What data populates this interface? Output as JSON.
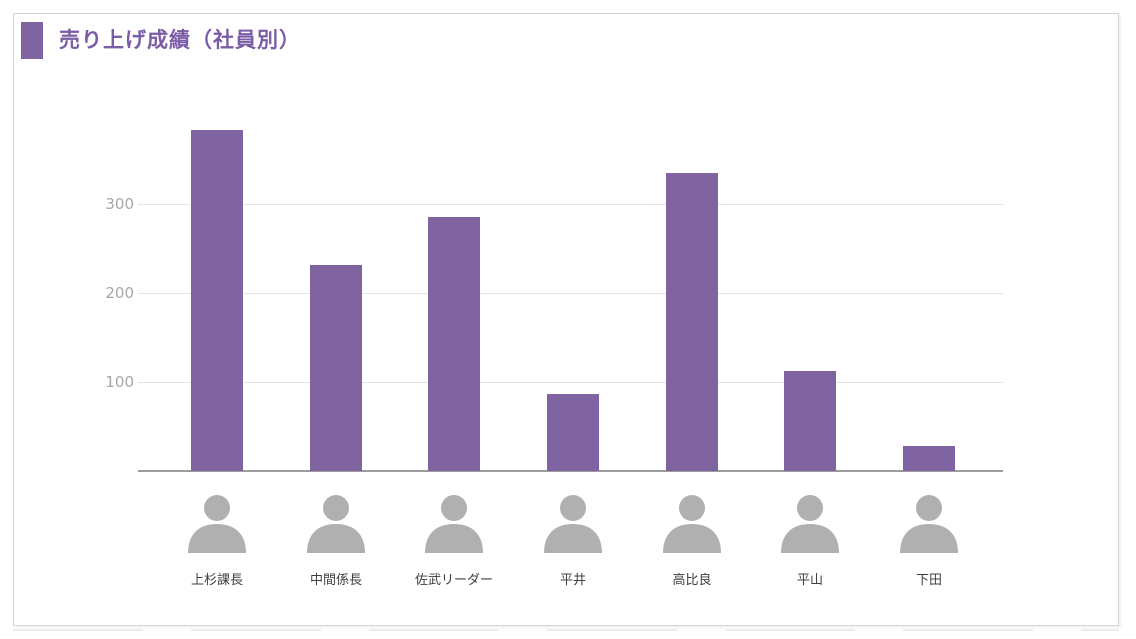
{
  "title": {
    "text": "売り上げ成績（社員別）"
  },
  "chart_data": {
    "type": "bar",
    "title": "売り上げ成績（社員別）",
    "categories": [
      "上杉課長",
      "中間係長",
      "佐武リーダー",
      "平井",
      "高比良",
      "平山",
      "下田"
    ],
    "values": [
      383,
      231,
      285,
      87,
      335,
      112,
      28
    ],
    "xlabel": "",
    "ylabel": "",
    "y_ticks": [
      100,
      200,
      300
    ],
    "ylim": [
      0,
      410
    ],
    "grid": true,
    "legend": false,
    "bar_color": "#8064A2",
    "category_icon": "person-icon"
  },
  "colors": {
    "bar": "#8064A2",
    "title_text": "#7A5DA6",
    "person_icon": "#B0B0B0",
    "gridline": "#E3E3E3",
    "axis_line": "#9C9C9C",
    "tick_label": "#A6A6A6",
    "name_label": "#3F3F3F",
    "canvas_border": "#D4D4D4"
  }
}
